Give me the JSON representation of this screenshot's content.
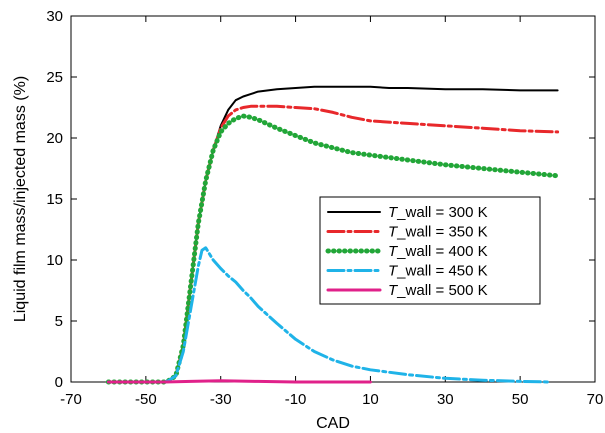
{
  "chart_data": {
    "type": "line",
    "xlabel": "CAD",
    "ylabel": "Liquid film mass/injected mass (%)",
    "xlim": [
      -70,
      70
    ],
    "ylim": [
      0,
      30
    ],
    "x_ticks": [
      "-70",
      "-50",
      "-30",
      "-10",
      "10",
      "30",
      "50",
      "70"
    ],
    "y_ticks": [
      "0",
      "5",
      "10",
      "15",
      "20",
      "25",
      "30"
    ],
    "grid": false,
    "legend_position": "center-right",
    "series": [
      {
        "name": "T_wall  = 300 K",
        "legend_italic": "T",
        "legend_rest": "_wall  = 300 K",
        "color": "#000000",
        "style": "solid",
        "x": [
          -60,
          -45,
          -44,
          -42,
          -40,
          -38,
          -36,
          -34,
          -32,
          -30,
          -28,
          -26,
          -24,
          -22,
          -20,
          -15,
          -10,
          -5,
          0,
          5,
          10,
          15,
          20,
          30,
          40,
          50,
          60
        ],
        "y": [
          0,
          0,
          0.1,
          0.5,
          3,
          8,
          13,
          16.5,
          19,
          21,
          22.3,
          23.1,
          23.4,
          23.6,
          23.8,
          24,
          24.1,
          24.2,
          24.2,
          24.2,
          24.2,
          24.1,
          24.1,
          24,
          24,
          23.9,
          23.9
        ]
      },
      {
        "name": "T_wall  = 350 K",
        "legend_italic": "T",
        "legend_rest": "_wall  = 350 K",
        "color": "#e8282b",
        "style": "dashdot",
        "x": [
          -60,
          -45,
          -44,
          -42,
          -40,
          -38,
          -36,
          -34,
          -32,
          -30,
          -28,
          -26,
          -24,
          -22,
          -20,
          -15,
          -10,
          -5,
          0,
          5,
          10,
          20,
          30,
          40,
          50,
          60
        ],
        "y": [
          0,
          0,
          0.1,
          0.5,
          3,
          8,
          13,
          16.5,
          19,
          20.8,
          21.8,
          22.3,
          22.5,
          22.6,
          22.6,
          22.6,
          22.5,
          22.4,
          22.1,
          21.7,
          21.4,
          21.2,
          21,
          20.8,
          20.6,
          20.5
        ]
      },
      {
        "name": "T_wall  = 400 K",
        "legend_italic": "T",
        "legend_rest": "_wall  = 400 K",
        "color": "#22a638",
        "style": "dotted",
        "x": [
          -60,
          -45,
          -44,
          -42,
          -40,
          -38,
          -36,
          -34,
          -32,
          -30,
          -28,
          -26,
          -24,
          -22,
          -20,
          -15,
          -10,
          -5,
          0,
          5,
          10,
          20,
          30,
          40,
          50,
          60
        ],
        "y": [
          0,
          0,
          0.1,
          0.5,
          3,
          8,
          13,
          16.5,
          19,
          20.5,
          21.2,
          21.6,
          21.8,
          21.7,
          21.5,
          20.8,
          20.2,
          19.6,
          19.2,
          18.8,
          18.6,
          18.2,
          17.8,
          17.5,
          17.2,
          16.9
        ]
      },
      {
        "name": "T_wall  = 450 K",
        "legend_italic": "T",
        "legend_rest": "_wall  = 450 K",
        "color": "#1fb3e8",
        "style": "dashdot",
        "x": [
          -60,
          -45,
          -44,
          -42,
          -40,
          -38,
          -36,
          -35,
          -34,
          -32,
          -30,
          -28,
          -26,
          -24,
          -22,
          -20,
          -15,
          -10,
          -5,
          0,
          5,
          10,
          20,
          30,
          40,
          50,
          58
        ],
        "y": [
          0,
          0,
          0.1,
          0.5,
          2.5,
          6,
          9.5,
          10.8,
          11,
          10,
          9.3,
          8.7,
          8.2,
          7.5,
          6.9,
          6.2,
          4.8,
          3.5,
          2.5,
          1.8,
          1.3,
          1,
          0.6,
          0.3,
          0.15,
          0.05,
          0
        ]
      },
      {
        "name": "T_wall  = 500 K",
        "legend_italic": "T",
        "legend_rest": "_wall  = 500 K",
        "color": "#e0218a",
        "style": "solid",
        "x": [
          -60,
          -45,
          -38,
          -30,
          -20,
          -10,
          0,
          5,
          10
        ],
        "y": [
          0,
          0,
          0.05,
          0.1,
          0.05,
          0,
          0,
          0,
          0
        ]
      }
    ]
  }
}
